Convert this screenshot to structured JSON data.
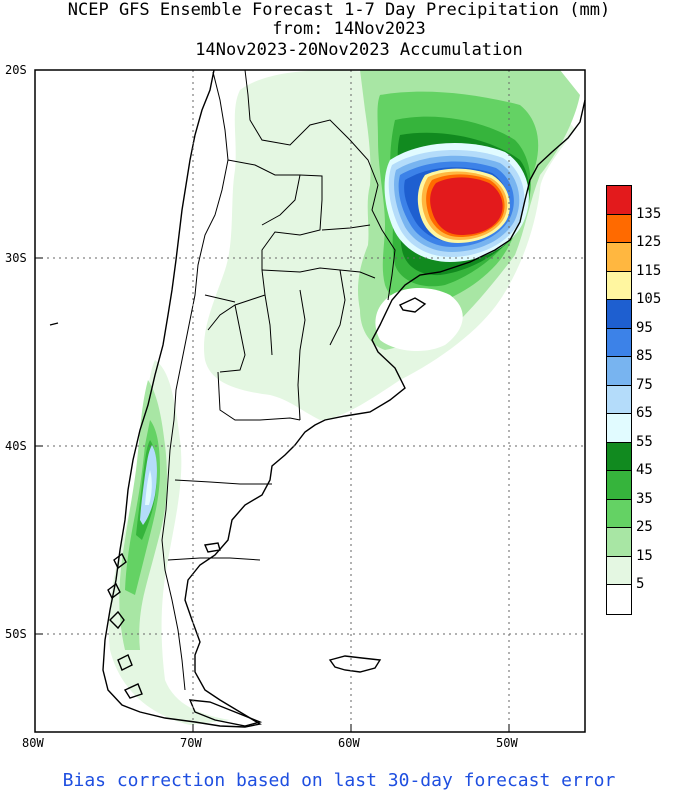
{
  "title": {
    "line1": "NCEP GFS Ensemble Forecast 1-7 Day Precipitation (mm)",
    "line2": "from: 14Nov2023",
    "line3": "14Nov2023-20Nov2023 Accumulation"
  },
  "axes": {
    "lat_labels": [
      "20S",
      "30S",
      "40S",
      "50S"
    ],
    "lon_labels": [
      "80W",
      "70W",
      "60W",
      "50W"
    ]
  },
  "legend": {
    "levels": [
      {
        "label": "135",
        "color": "#e31a1c"
      },
      {
        "label": "125",
        "color": "#ff6a00"
      },
      {
        "label": "115",
        "color": "#ffb740"
      },
      {
        "label": "105",
        "color": "#fff6a0"
      },
      {
        "label": "95",
        "color": "#1e5fd0"
      },
      {
        "label": "85",
        "color": "#3c82e8"
      },
      {
        "label": "75",
        "color": "#78b4f0"
      },
      {
        "label": "65",
        "color": "#b4dcfa"
      },
      {
        "label": "55",
        "color": "#e1fbff"
      },
      {
        "label": "45",
        "color": "#118a1f"
      },
      {
        "label": "35",
        "color": "#36b43c"
      },
      {
        "label": "25",
        "color": "#64d264"
      },
      {
        "label": "15",
        "color": "#a8e6a4"
      },
      {
        "label": "5",
        "color": "#e4f7e2"
      },
      {
        "label": "",
        "color": "#ffffff"
      }
    ]
  },
  "footer": "Bias correction based on last 30-day forecast error"
}
